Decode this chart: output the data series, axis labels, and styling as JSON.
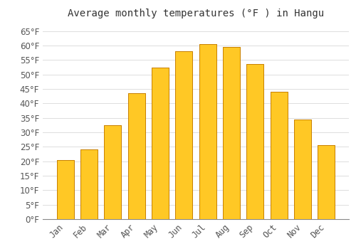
{
  "title": "Average monthly temperatures (°F ) in Hangu",
  "months": [
    "Jan",
    "Feb",
    "Mar",
    "Apr",
    "May",
    "Jun",
    "Jul",
    "Aug",
    "Sep",
    "Oct",
    "Nov",
    "Dec"
  ],
  "values": [
    20.5,
    24.0,
    32.5,
    43.5,
    52.5,
    58.0,
    60.5,
    59.5,
    53.5,
    44.0,
    34.5,
    25.5
  ],
  "bar_color_top": "#FFC825",
  "bar_color_bottom": "#F5A800",
  "bar_edge_color": "#C88000",
  "background_color": "#FFFFFF",
  "grid_color": "#DDDDDD",
  "text_color": "#555555",
  "ylim": [
    0,
    68
  ],
  "yticks": [
    0,
    5,
    10,
    15,
    20,
    25,
    30,
    35,
    40,
    45,
    50,
    55,
    60,
    65
  ],
  "title_fontsize": 10,
  "tick_fontsize": 8.5
}
